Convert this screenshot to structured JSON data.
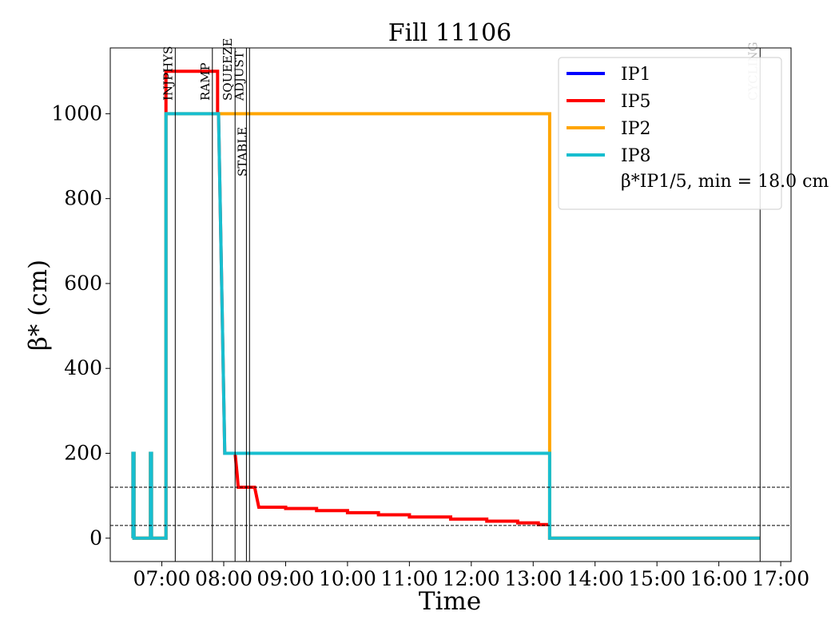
{
  "chart_data": {
    "type": "line",
    "title": "Fill 11106",
    "xlabel": "Time",
    "ylabel": "β* (cm)",
    "x_ticks": [
      "07:00",
      "08:00",
      "09:00",
      "10:00",
      "11:00",
      "12:00",
      "13:00",
      "14:00",
      "15:00",
      "16:00",
      "17:00"
    ],
    "y_ticks": [
      0,
      200,
      400,
      600,
      800,
      1000
    ],
    "xlim": [
      "06:10",
      "17:10"
    ],
    "ylim": [
      -55,
      1155
    ],
    "grid": false,
    "legend_position": "top-right",
    "legend_note": "β*IP1/5, min = 18.0 cm",
    "reference_lines": [
      30,
      120
    ],
    "mode_markers": [
      {
        "time": "07:13",
        "label": "INJPHYS"
      },
      {
        "time": "07:49",
        "label": "RAMP"
      },
      {
        "time": "08:11",
        "label": "SQUEEZE"
      },
      {
        "time": "08:22",
        "label": "ADJUST"
      },
      {
        "time": "08:25",
        "label": "STABLE"
      },
      {
        "time": "16:40",
        "label": "CYCLING",
        "color": "#bbbbbb"
      }
    ],
    "series": [
      {
        "name": "IP1",
        "color": "#0000ff",
        "points": []
      },
      {
        "name": "IP5",
        "color": "#ff0000",
        "points": [
          [
            "06:32",
            0
          ],
          [
            "06:32",
            200
          ],
          [
            "06:33",
            200
          ],
          [
            "06:33",
            0
          ],
          [
            "06:49",
            0
          ],
          [
            "06:49",
            200
          ],
          [
            "06:50",
            200
          ],
          [
            "06:50",
            0
          ],
          [
            "07:04",
            0
          ],
          [
            "07:04",
            1100
          ],
          [
            "07:54",
            1100
          ],
          [
            "07:54",
            1000
          ],
          [
            "07:55",
            1000
          ],
          [
            "08:01",
            200
          ],
          [
            "08:11",
            200
          ],
          [
            "08:13",
            150
          ],
          [
            "08:14",
            120
          ],
          [
            "08:30",
            120
          ],
          [
            "08:34",
            73
          ],
          [
            "09:00",
            73
          ],
          [
            "09:00",
            70
          ],
          [
            "09:30",
            70
          ],
          [
            "09:30",
            65
          ],
          [
            "10:00",
            65
          ],
          [
            "10:00",
            60
          ],
          [
            "10:30",
            60
          ],
          [
            "10:30",
            55
          ],
          [
            "11:00",
            55
          ],
          [
            "11:00",
            50
          ],
          [
            "11:40",
            50
          ],
          [
            "11:40",
            45
          ],
          [
            "12:15",
            45
          ],
          [
            "12:15",
            40
          ],
          [
            "12:45",
            40
          ],
          [
            "12:45",
            36
          ],
          [
            "13:05",
            36
          ],
          [
            "13:05",
            32
          ],
          [
            "13:16",
            32
          ],
          [
            "13:16",
            0
          ],
          [
            "16:40",
            0
          ]
        ]
      },
      {
        "name": "IP2",
        "color": "#ffa500",
        "points": [
          [
            "06:32",
            0
          ],
          [
            "06:32",
            200
          ],
          [
            "06:33",
            200
          ],
          [
            "06:33",
            0
          ],
          [
            "06:49",
            0
          ],
          [
            "06:49",
            200
          ],
          [
            "06:50",
            200
          ],
          [
            "06:50",
            0
          ],
          [
            "07:04",
            0
          ],
          [
            "07:04",
            1000
          ],
          [
            "13:16",
            1000
          ],
          [
            "13:16",
            200
          ],
          [
            "13:16",
            0
          ],
          [
            "16:40",
            0
          ]
        ]
      },
      {
        "name": "IP8",
        "color": "#17becf",
        "points": [
          [
            "06:32",
            0
          ],
          [
            "06:32",
            200
          ],
          [
            "06:33",
            200
          ],
          [
            "06:33",
            0
          ],
          [
            "06:49",
            0
          ],
          [
            "06:49",
            200
          ],
          [
            "06:50",
            200
          ],
          [
            "06:50",
            0
          ],
          [
            "07:04",
            0
          ],
          [
            "07:04",
            1000
          ],
          [
            "07:55",
            1000
          ],
          [
            "08:01",
            200
          ],
          [
            "13:16",
            200
          ],
          [
            "13:16",
            0
          ],
          [
            "16:40",
            0
          ]
        ]
      }
    ]
  }
}
